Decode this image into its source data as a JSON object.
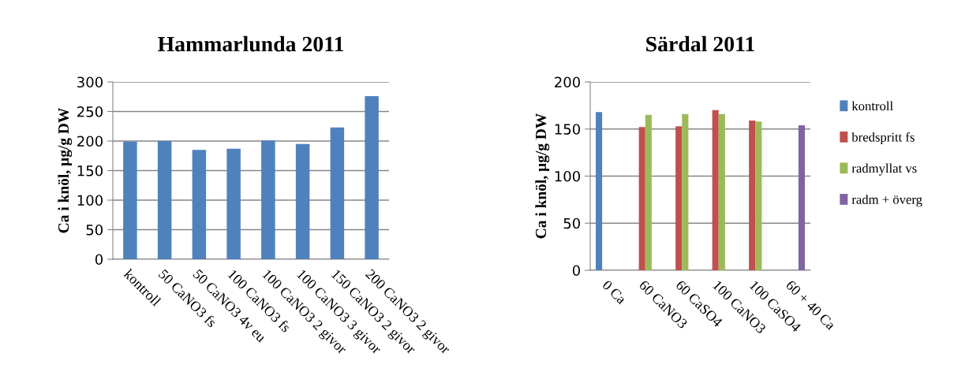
{
  "chart_data": [
    {
      "type": "bar",
      "title": "Hammarlunda 2011",
      "ylabel": "Ca i knöl, µg/g DW",
      "categories": [
        "kontroll",
        "50 CaNO3 fs",
        "50 CaNO3 4v eu",
        "100 CaNO3 fs",
        "100 CaNO3 2 givor",
        "100 CaNO3 3 givor",
        "150 CaNO3 2 givor",
        "200 CaNO3 2 givor"
      ],
      "values": [
        199,
        200,
        185,
        187,
        201,
        195,
        223,
        276
      ],
      "color": "#4f81bd",
      "ylim": [
        0,
        300
      ],
      "yticks": [
        0,
        50,
        100,
        150,
        200,
        250,
        300
      ],
      "grid": "y",
      "legend": false
    },
    {
      "type": "bar",
      "title": "Särdal 2011",
      "ylabel": "Ca i knöl, µg/g DW",
      "categories": [
        "0 Ca",
        "60 CaNO3",
        "60 CaSO4",
        "100 CaNO3",
        "100 CaSO4",
        "60 + 40 Ca"
      ],
      "series": [
        {
          "name": "kontroll",
          "color": "#4f81bd",
          "values": [
            168,
            null,
            null,
            null,
            null,
            null
          ]
        },
        {
          "name": "bredspritt fs",
          "color": "#c0504d",
          "values": [
            null,
            152,
            153,
            170,
            159,
            null
          ]
        },
        {
          "name": "radmyllat vs",
          "color": "#9bbb59",
          "values": [
            null,
            165,
            166,
            166,
            158,
            null
          ]
        },
        {
          "name": "radm + överg",
          "color": "#8064a2",
          "values": [
            null,
            null,
            null,
            null,
            null,
            154
          ]
        }
      ],
      "ylim": [
        0,
        200
      ],
      "yticks": [
        0,
        50,
        100,
        150,
        200
      ],
      "grid": "y",
      "legend": "right"
    }
  ]
}
